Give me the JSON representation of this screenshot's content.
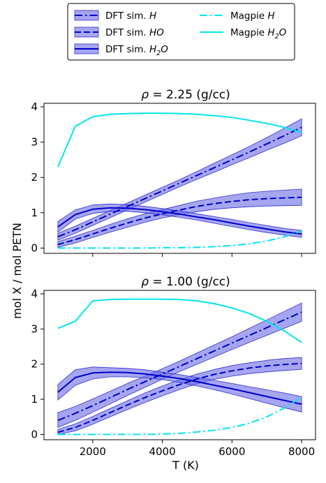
{
  "legend": {
    "items": [
      {
        "label": "DFT sim. ",
        "italic": "H",
        "sub": "",
        "style": "dashdot",
        "color": "#0000cc",
        "band": true
      },
      {
        "label": "DFT sim. ",
        "italic": "HO",
        "sub": "",
        "style": "dashed",
        "color": "#0000cc",
        "band": true
      },
      {
        "label": "DFT sim. ",
        "italic": "H",
        "sub": "2",
        "tail": "O",
        "style": "solid",
        "color": "#0000cc",
        "band": true
      },
      {
        "label": "Magpie ",
        "italic": "H",
        "sub": "",
        "style": "dashdot",
        "color": "#00e5ee",
        "band": false
      },
      {
        "label": "Magpie ",
        "italic": "H",
        "sub": "2",
        "tail": "O",
        "style": "solid",
        "color": "#00e5ee",
        "band": false
      }
    ]
  },
  "xlabel": "T (K)",
  "ylabel": "mol X / mol PETN",
  "colors": {
    "dft": "#0000cc",
    "band": "#6a6ae6",
    "magpie": "#00e5ee"
  },
  "chart_data": [
    {
      "type": "line",
      "title": "ρ = 2.25 (g/cc)",
      "title_rho": "ρ",
      "title_rest": " = 2.25 (g/cc)",
      "xlim": [
        600,
        8400
      ],
      "ylim": [
        -0.15,
        4.1
      ],
      "xticks": [
        2000,
        4000,
        6000,
        8000
      ],
      "yticks": [
        0,
        1,
        2,
        3,
        4
      ],
      "x": [
        1000,
        1500,
        2000,
        2500,
        3000,
        3500,
        4000,
        4500,
        5000,
        5500,
        6000,
        6500,
        7000,
        7500,
        8000
      ],
      "series": [
        {
          "name": "DFT sim. H",
          "style": "dashdot",
          "color": "dft",
          "values": [
            0.32,
            0.52,
            0.74,
            0.96,
            1.18,
            1.4,
            1.62,
            1.84,
            2.06,
            2.28,
            2.5,
            2.72,
            2.95,
            3.18,
            3.42
          ],
          "lower": [
            0.22,
            0.42,
            0.64,
            0.86,
            1.08,
            1.3,
            1.52,
            1.74,
            1.95,
            2.15,
            2.36,
            2.56,
            2.77,
            2.97,
            3.18
          ],
          "upper": [
            0.42,
            0.62,
            0.84,
            1.06,
            1.28,
            1.5,
            1.72,
            1.94,
            2.17,
            2.41,
            2.64,
            2.88,
            3.13,
            3.39,
            3.66
          ]
        },
        {
          "name": "DFT sim. HO",
          "style": "dashed",
          "color": "dft",
          "values": [
            0.1,
            0.24,
            0.4,
            0.56,
            0.71,
            0.85,
            0.97,
            1.08,
            1.18,
            1.26,
            1.32,
            1.37,
            1.4,
            1.42,
            1.44
          ],
          "lower": [
            0.02,
            0.14,
            0.3,
            0.45,
            0.59,
            0.73,
            0.85,
            0.95,
            1.03,
            1.1,
            1.14,
            1.17,
            1.19,
            1.2,
            1.21
          ],
          "upper": [
            0.18,
            0.34,
            0.5,
            0.67,
            0.83,
            0.97,
            1.09,
            1.21,
            1.33,
            1.42,
            1.5,
            1.57,
            1.61,
            1.64,
            1.67
          ]
        },
        {
          "name": "DFT sim. H2O",
          "style": "solid",
          "color": "dft",
          "values": [
            0.6,
            0.95,
            1.1,
            1.14,
            1.13,
            1.09,
            1.03,
            0.96,
            0.88,
            0.8,
            0.71,
            0.62,
            0.54,
            0.46,
            0.4
          ],
          "lower": [
            0.45,
            0.82,
            0.98,
            1.04,
            1.04,
            1.0,
            0.94,
            0.87,
            0.79,
            0.7,
            0.61,
            0.52,
            0.44,
            0.37,
            0.3
          ],
          "upper": [
            0.75,
            1.08,
            1.22,
            1.25,
            1.23,
            1.18,
            1.12,
            1.05,
            0.97,
            0.89,
            0.81,
            0.72,
            0.64,
            0.56,
            0.5
          ]
        },
        {
          "name": "Magpie H",
          "style": "dashdot",
          "color": "magpie",
          "values": [
            0.0,
            0.0,
            0.0,
            0.0,
            0.0,
            0.0,
            0.01,
            0.01,
            0.02,
            0.04,
            0.07,
            0.12,
            0.2,
            0.32,
            0.48
          ]
        },
        {
          "name": "Magpie H2O",
          "style": "solid",
          "color": "magpie",
          "values": [
            2.3,
            3.45,
            3.72,
            3.79,
            3.81,
            3.82,
            3.82,
            3.81,
            3.79,
            3.75,
            3.7,
            3.62,
            3.53,
            3.42,
            3.28
          ]
        }
      ]
    },
    {
      "type": "line",
      "title": "ρ = 1.00 (g/cc)",
      "title_rho": "ρ",
      "title_rest": " = 1.00 (g/cc)",
      "xlim": [
        600,
        8400
      ],
      "ylim": [
        -0.15,
        4.1
      ],
      "xticks": [
        2000,
        4000,
        6000,
        8000
      ],
      "yticks": [
        0,
        1,
        2,
        3,
        4
      ],
      "x": [
        1000,
        1500,
        2000,
        2500,
        3000,
        3500,
        4000,
        4500,
        5000,
        5500,
        6000,
        6500,
        7000,
        7500,
        8000
      ],
      "series": [
        {
          "name": "DFT sim. H",
          "style": "dashdot",
          "color": "dft",
          "values": [
            0.4,
            0.6,
            0.82,
            1.05,
            1.28,
            1.5,
            1.72,
            1.94,
            2.16,
            2.38,
            2.6,
            2.82,
            3.04,
            3.26,
            3.48
          ],
          "lower": [
            0.2,
            0.4,
            0.63,
            0.87,
            1.11,
            1.34,
            1.57,
            1.79,
            2.0,
            2.21,
            2.42,
            2.62,
            2.82,
            3.02,
            3.22
          ],
          "upper": [
            0.62,
            0.8,
            1.01,
            1.23,
            1.45,
            1.66,
            1.87,
            2.09,
            2.32,
            2.55,
            2.78,
            3.02,
            3.26,
            3.5,
            3.74
          ]
        },
        {
          "name": "DFT sim. HO",
          "style": "dashed",
          "color": "dft",
          "values": [
            0.06,
            0.2,
            0.4,
            0.62,
            0.84,
            1.05,
            1.24,
            1.42,
            1.58,
            1.71,
            1.81,
            1.89,
            1.95,
            1.99,
            2.02
          ],
          "lower": [
            0.0,
            0.1,
            0.29,
            0.5,
            0.71,
            0.91,
            1.1,
            1.28,
            1.44,
            1.57,
            1.66,
            1.73,
            1.78,
            1.82,
            1.85
          ],
          "upper": [
            0.14,
            0.3,
            0.51,
            0.74,
            0.96,
            1.18,
            1.38,
            1.56,
            1.72,
            1.85,
            1.96,
            2.04,
            2.11,
            2.16,
            2.19
          ]
        },
        {
          "name": "DFT sim. H2O",
          "style": "solid",
          "color": "dft",
          "values": [
            1.2,
            1.62,
            1.75,
            1.77,
            1.76,
            1.72,
            1.66,
            1.59,
            1.5,
            1.4,
            1.3,
            1.19,
            1.08,
            0.97,
            0.86
          ],
          "lower": [
            0.98,
            1.4,
            1.58,
            1.64,
            1.64,
            1.61,
            1.56,
            1.48,
            1.38,
            1.27,
            1.15,
            1.02,
            0.89,
            0.76,
            0.64
          ],
          "upper": [
            1.42,
            1.84,
            1.92,
            1.9,
            1.88,
            1.84,
            1.77,
            1.7,
            1.62,
            1.54,
            1.45,
            1.36,
            1.27,
            1.18,
            1.08
          ]
        },
        {
          "name": "Magpie H",
          "style": "dashdot",
          "color": "magpie",
          "values": [
            0.0,
            0.0,
            0.0,
            0.0,
            0.0,
            0.0,
            0.01,
            0.03,
            0.07,
            0.12,
            0.2,
            0.32,
            0.5,
            0.75,
            1.06
          ]
        },
        {
          "name": "Magpie H2O",
          "style": "solid",
          "color": "magpie",
          "values": [
            3.02,
            3.22,
            3.8,
            3.84,
            3.85,
            3.85,
            3.85,
            3.84,
            3.8,
            3.72,
            3.6,
            3.44,
            3.22,
            2.95,
            2.62
          ]
        }
      ]
    }
  ]
}
